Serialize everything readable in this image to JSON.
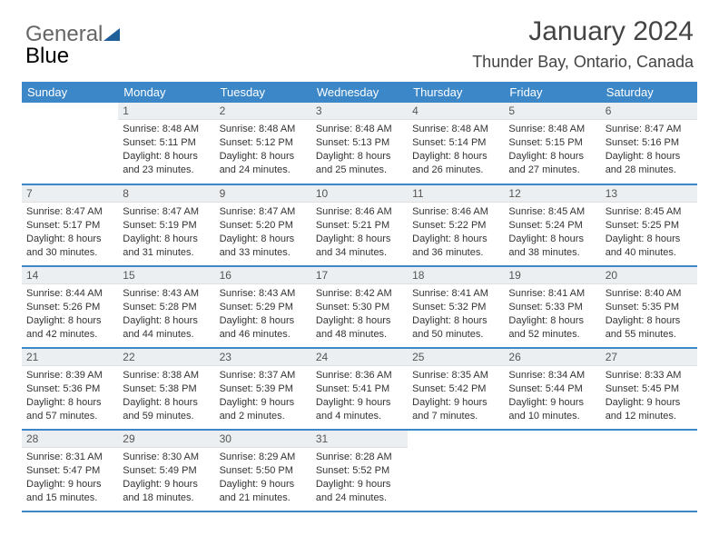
{
  "logo": {
    "part1": "General",
    "part2": "Blue"
  },
  "title": "January 2024",
  "location": "Thunder Bay, Ontario, Canada",
  "colors": {
    "header_bg": "#3b87c8",
    "header_text": "#ffffff",
    "daynum_bg": "#eceff1",
    "row_border": "#3b87c8",
    "body_text": "#333333",
    "title_text": "#444444"
  },
  "weekdays": [
    "Sunday",
    "Monday",
    "Tuesday",
    "Wednesday",
    "Thursday",
    "Friday",
    "Saturday"
  ],
  "first_weekday_index": 1,
  "days": [
    {
      "n": 1,
      "sunrise": "8:48 AM",
      "sunset": "5:11 PM",
      "daylight": "8 hours and 23 minutes."
    },
    {
      "n": 2,
      "sunrise": "8:48 AM",
      "sunset": "5:12 PM",
      "daylight": "8 hours and 24 minutes."
    },
    {
      "n": 3,
      "sunrise": "8:48 AM",
      "sunset": "5:13 PM",
      "daylight": "8 hours and 25 minutes."
    },
    {
      "n": 4,
      "sunrise": "8:48 AM",
      "sunset": "5:14 PM",
      "daylight": "8 hours and 26 minutes."
    },
    {
      "n": 5,
      "sunrise": "8:48 AM",
      "sunset": "5:15 PM",
      "daylight": "8 hours and 27 minutes."
    },
    {
      "n": 6,
      "sunrise": "8:47 AM",
      "sunset": "5:16 PM",
      "daylight": "8 hours and 28 minutes."
    },
    {
      "n": 7,
      "sunrise": "8:47 AM",
      "sunset": "5:17 PM",
      "daylight": "8 hours and 30 minutes."
    },
    {
      "n": 8,
      "sunrise": "8:47 AM",
      "sunset": "5:19 PM",
      "daylight": "8 hours and 31 minutes."
    },
    {
      "n": 9,
      "sunrise": "8:47 AM",
      "sunset": "5:20 PM",
      "daylight": "8 hours and 33 minutes."
    },
    {
      "n": 10,
      "sunrise": "8:46 AM",
      "sunset": "5:21 PM",
      "daylight": "8 hours and 34 minutes."
    },
    {
      "n": 11,
      "sunrise": "8:46 AM",
      "sunset": "5:22 PM",
      "daylight": "8 hours and 36 minutes."
    },
    {
      "n": 12,
      "sunrise": "8:45 AM",
      "sunset": "5:24 PM",
      "daylight": "8 hours and 38 minutes."
    },
    {
      "n": 13,
      "sunrise": "8:45 AM",
      "sunset": "5:25 PM",
      "daylight": "8 hours and 40 minutes."
    },
    {
      "n": 14,
      "sunrise": "8:44 AM",
      "sunset": "5:26 PM",
      "daylight": "8 hours and 42 minutes."
    },
    {
      "n": 15,
      "sunrise": "8:43 AM",
      "sunset": "5:28 PM",
      "daylight": "8 hours and 44 minutes."
    },
    {
      "n": 16,
      "sunrise": "8:43 AM",
      "sunset": "5:29 PM",
      "daylight": "8 hours and 46 minutes."
    },
    {
      "n": 17,
      "sunrise": "8:42 AM",
      "sunset": "5:30 PM",
      "daylight": "8 hours and 48 minutes."
    },
    {
      "n": 18,
      "sunrise": "8:41 AM",
      "sunset": "5:32 PM",
      "daylight": "8 hours and 50 minutes."
    },
    {
      "n": 19,
      "sunrise": "8:41 AM",
      "sunset": "5:33 PM",
      "daylight": "8 hours and 52 minutes."
    },
    {
      "n": 20,
      "sunrise": "8:40 AM",
      "sunset": "5:35 PM",
      "daylight": "8 hours and 55 minutes."
    },
    {
      "n": 21,
      "sunrise": "8:39 AM",
      "sunset": "5:36 PM",
      "daylight": "8 hours and 57 minutes."
    },
    {
      "n": 22,
      "sunrise": "8:38 AM",
      "sunset": "5:38 PM",
      "daylight": "8 hours and 59 minutes."
    },
    {
      "n": 23,
      "sunrise": "8:37 AM",
      "sunset": "5:39 PM",
      "daylight": "9 hours and 2 minutes."
    },
    {
      "n": 24,
      "sunrise": "8:36 AM",
      "sunset": "5:41 PM",
      "daylight": "9 hours and 4 minutes."
    },
    {
      "n": 25,
      "sunrise": "8:35 AM",
      "sunset": "5:42 PM",
      "daylight": "9 hours and 7 minutes."
    },
    {
      "n": 26,
      "sunrise": "8:34 AM",
      "sunset": "5:44 PM",
      "daylight": "9 hours and 10 minutes."
    },
    {
      "n": 27,
      "sunrise": "8:33 AM",
      "sunset": "5:45 PM",
      "daylight": "9 hours and 12 minutes."
    },
    {
      "n": 28,
      "sunrise": "8:31 AM",
      "sunset": "5:47 PM",
      "daylight": "9 hours and 15 minutes."
    },
    {
      "n": 29,
      "sunrise": "8:30 AM",
      "sunset": "5:49 PM",
      "daylight": "9 hours and 18 minutes."
    },
    {
      "n": 30,
      "sunrise": "8:29 AM",
      "sunset": "5:50 PM",
      "daylight": "9 hours and 21 minutes."
    },
    {
      "n": 31,
      "sunrise": "8:28 AM",
      "sunset": "5:52 PM",
      "daylight": "9 hours and 24 minutes."
    }
  ],
  "labels": {
    "sunrise": "Sunrise:",
    "sunset": "Sunset:",
    "daylight": "Daylight:"
  }
}
